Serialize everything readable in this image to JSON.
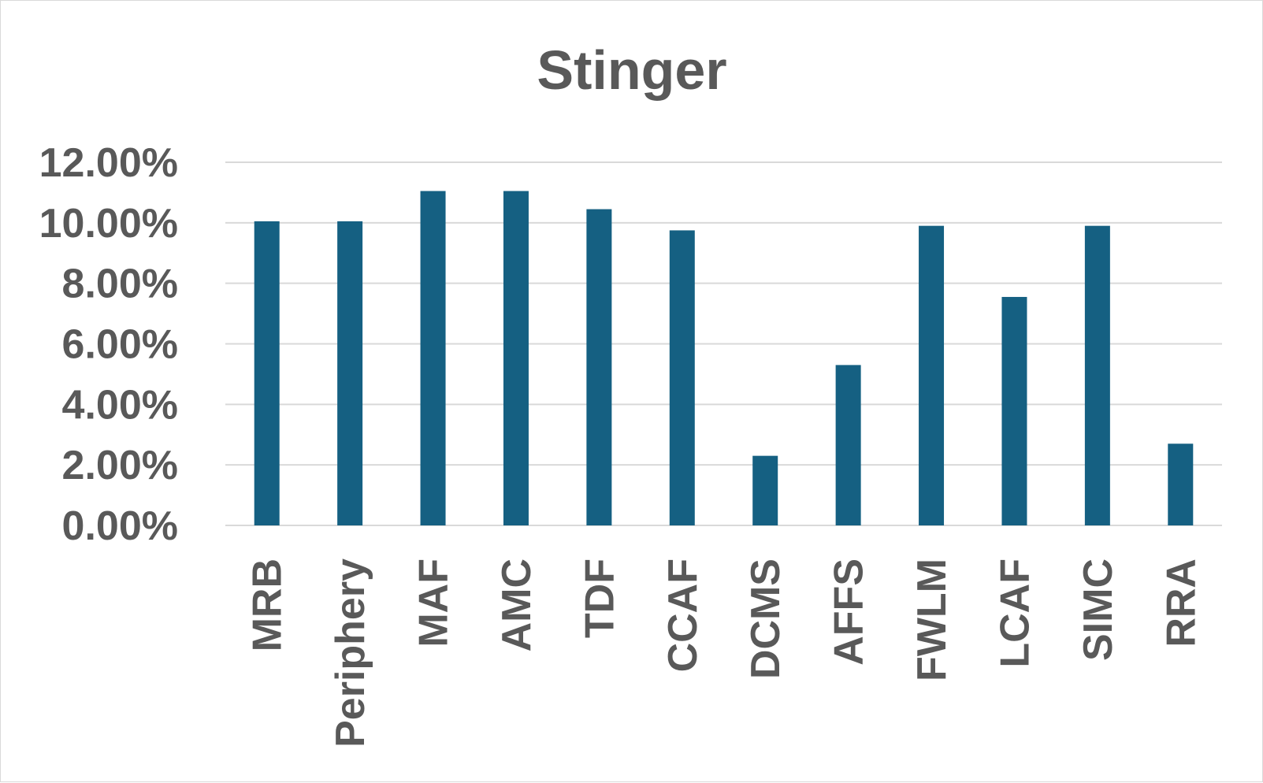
{
  "chart_data": {
    "type": "bar",
    "title": "Stinger",
    "xlabel": "",
    "ylabel": "",
    "categories": [
      "MRB",
      "Periphery",
      "MAF",
      "AMC",
      "TDF",
      "CCAF",
      "DCMS",
      "AFFS",
      "FWLM",
      "LCAF",
      "SIMC",
      "RRA"
    ],
    "values": [
      10.05,
      10.05,
      11.05,
      11.05,
      10.45,
      9.75,
      2.3,
      5.3,
      9.9,
      7.55,
      9.9,
      2.7
    ],
    "value_format": "percent",
    "ylim": [
      0,
      12
    ],
    "yticks": [
      "0.00%",
      "2.00%",
      "4.00%",
      "6.00%",
      "8.00%",
      "10.00%",
      "12.00%"
    ],
    "ytick_values": [
      0,
      2,
      4,
      6,
      8,
      10,
      12
    ],
    "grid": true,
    "legend": "none",
    "colors": {
      "bar": "#156082",
      "text": "#595959",
      "grid": "#d9d9d9"
    }
  }
}
